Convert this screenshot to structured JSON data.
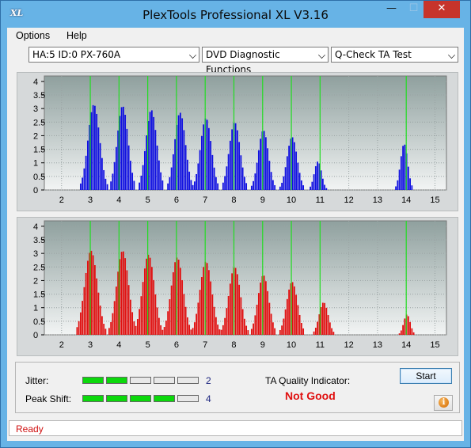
{
  "window": {
    "title": "PlexTools Professional XL V3.16",
    "icon_text": "XL",
    "controls": {
      "minimize": "—",
      "maximize": "☐",
      "close": "✕"
    }
  },
  "menu": {
    "items": [
      "Options",
      "Help"
    ]
  },
  "toolbar": {
    "device": "HA:5 ID:0  PX-760A",
    "function": "DVD Diagnostic Functions",
    "test": "Q-Check TA Test"
  },
  "charts": {
    "x_ticks": [
      "2",
      "3",
      "4",
      "5",
      "6",
      "7",
      "8",
      "9",
      "10",
      "11",
      "12",
      "13",
      "14",
      "15"
    ],
    "y_ticks": [
      "0",
      "0.5",
      "1",
      "1.5",
      "2",
      "2.5",
      "3",
      "3.5",
      "4"
    ],
    "top_color": "#1010e0",
    "bottom_color": "#e01010",
    "marker_color": "#22dd22",
    "markers": [
      3,
      4,
      5,
      6,
      7,
      8,
      9,
      10,
      11,
      14
    ]
  },
  "chart_data": [
    {
      "type": "bar",
      "name": "top",
      "xlim": [
        1.4,
        15.4
      ],
      "ylim": [
        0,
        4.2
      ],
      "peaks": [
        {
          "center": 3.1,
          "height": 3.15,
          "width": 0.32
        },
        {
          "center": 4.1,
          "height": 3.1,
          "width": 0.3
        },
        {
          "center": 5.1,
          "height": 2.95,
          "width": 0.3
        },
        {
          "center": 6.1,
          "height": 2.85,
          "width": 0.3
        },
        {
          "center": 7.0,
          "height": 2.65,
          "width": 0.3
        },
        {
          "center": 8.0,
          "height": 2.5,
          "width": 0.3
        },
        {
          "center": 9.0,
          "height": 2.2,
          "width": 0.28
        },
        {
          "center": 10.0,
          "height": 1.95,
          "width": 0.28
        },
        {
          "center": 10.9,
          "height": 1.05,
          "width": 0.2
        },
        {
          "center": 13.9,
          "height": 1.7,
          "width": 0.2
        }
      ]
    },
    {
      "type": "bar",
      "name": "bottom",
      "xlim": [
        1.4,
        15.4
      ],
      "ylim": [
        0,
        4.2
      ],
      "peaks": [
        {
          "center": 3.0,
          "height": 3.1,
          "width": 0.35
        },
        {
          "center": 4.1,
          "height": 3.1,
          "width": 0.33
        },
        {
          "center": 5.0,
          "height": 2.95,
          "width": 0.33
        },
        {
          "center": 6.0,
          "height": 2.85,
          "width": 0.33
        },
        {
          "center": 7.0,
          "height": 2.7,
          "width": 0.33
        },
        {
          "center": 8.0,
          "height": 2.5,
          "width": 0.32
        },
        {
          "center": 9.0,
          "height": 2.2,
          "width": 0.3
        },
        {
          "center": 10.0,
          "height": 1.95,
          "width": 0.3
        },
        {
          "center": 11.1,
          "height": 1.2,
          "width": 0.25
        },
        {
          "center": 14.0,
          "height": 0.75,
          "width": 0.18
        }
      ]
    }
  ],
  "results": {
    "jitter_label": "Jitter:",
    "jitter_value": "2",
    "jitter_segments": 2,
    "peak_label": "Peak Shift:",
    "peak_value": "4",
    "peak_segments": 4,
    "total_segments": 5,
    "ta_label": "TA Quality Indicator:",
    "ta_result": "Not Good",
    "start_label": "Start",
    "info_icon": "i"
  },
  "status": {
    "text": "Ready"
  }
}
